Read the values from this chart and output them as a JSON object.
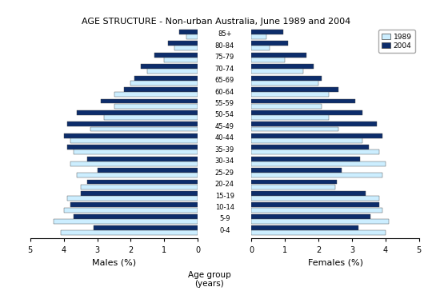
{
  "title": "AGE STRUCTURE - Non-urban Australia, June 1989 and 2004",
  "age_groups": [
    "0-4",
    "5-9",
    "10-14",
    "15-19",
    "20-24",
    "25-29",
    "30-34",
    "35-39",
    "40-44",
    "45-49",
    "50-54",
    "55-59",
    "60-64",
    "65-69",
    "70-74",
    "75-79",
    "80-84",
    "85+"
  ],
  "male_1989": [
    4.1,
    4.3,
    4.0,
    3.9,
    3.5,
    3.6,
    3.8,
    3.7,
    3.8,
    3.2,
    2.8,
    2.5,
    2.5,
    2.0,
    1.5,
    1.0,
    0.7,
    0.35
  ],
  "male_2004": [
    3.1,
    3.7,
    3.8,
    3.5,
    3.3,
    3.0,
    3.3,
    3.9,
    4.0,
    3.9,
    3.6,
    2.9,
    2.2,
    1.9,
    1.7,
    1.3,
    0.9,
    0.55
  ],
  "female_1989": [
    4.0,
    4.1,
    3.9,
    3.8,
    2.5,
    3.9,
    4.0,
    3.8,
    3.3,
    2.6,
    2.3,
    2.1,
    2.3,
    2.0,
    1.55,
    1.0,
    0.55,
    0.45
  ],
  "female_2004": [
    3.2,
    3.55,
    3.8,
    3.4,
    2.55,
    2.7,
    3.25,
    3.5,
    3.9,
    3.75,
    3.3,
    3.1,
    2.6,
    2.1,
    1.85,
    1.65,
    1.1,
    0.95
  ],
  "color_1989": "#cceeff",
  "color_2004": "#0d2d6b",
  "xlim": 5,
  "xlabel_left": "Males (%)",
  "xlabel_center": "Age group\n(years)",
  "xlabel_right": "Females (%)",
  "legend_1989": "1989",
  "legend_2004": "2004",
  "tick_positions": [
    0,
    1,
    2,
    3,
    4,
    5
  ],
  "bar_height": 0.85,
  "background_color": "#ffffff"
}
